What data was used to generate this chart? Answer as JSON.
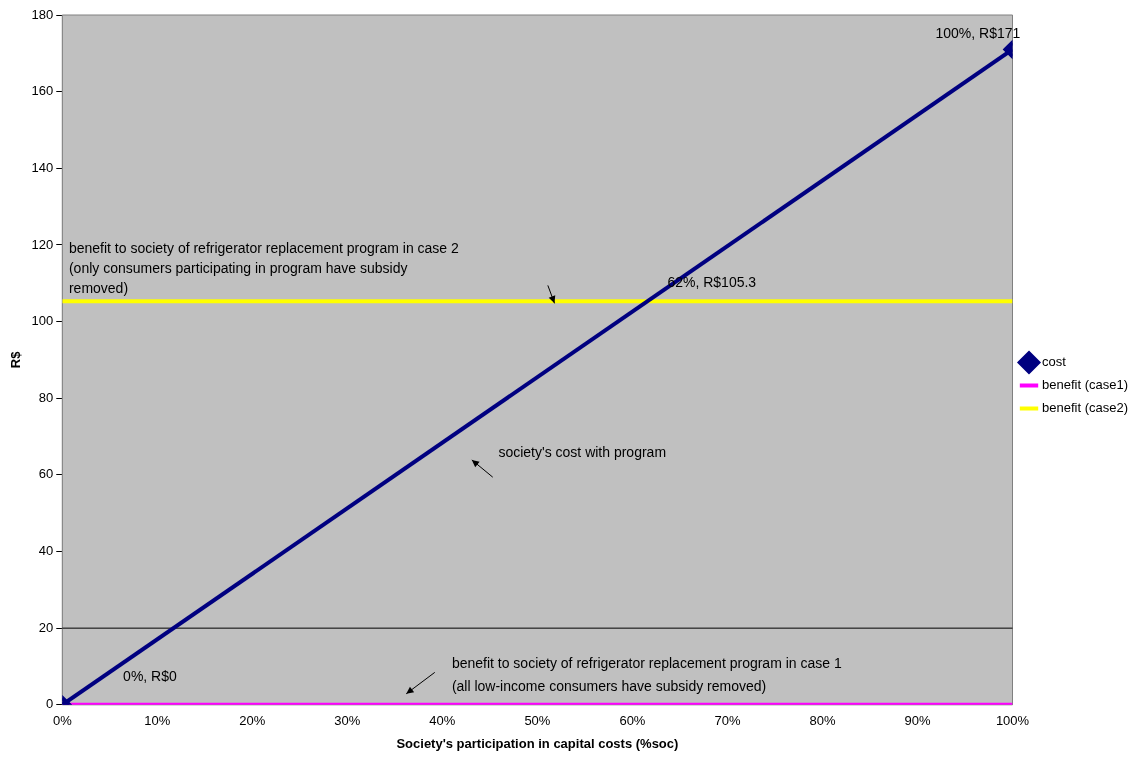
{
  "chart_data": {
    "type": "line",
    "xlabel": "Society's participation in capital costs (%soc)",
    "ylabel": "R$",
    "x": [
      0,
      100
    ],
    "series": [
      {
        "name": "cost",
        "color": "#000080",
        "values": [
          0,
          171
        ],
        "marker": "diamond"
      },
      {
        "name": "benefit (case1)",
        "color": "#ff00ff",
        "values": [
          0,
          0
        ],
        "marker": "none"
      },
      {
        "name": "benefit (case2)",
        "color": "#ffff00",
        "values": [
          105.3,
          105.3
        ],
        "marker": "none"
      }
    ],
    "xlim": [
      0,
      100
    ],
    "ylim": [
      0,
      180
    ],
    "xticks": [
      {
        "value": 0,
        "label": "0%"
      },
      {
        "value": 10,
        "label": "10%"
      },
      {
        "value": 20,
        "label": "20%"
      },
      {
        "value": 30,
        "label": "30%"
      },
      {
        "value": 40,
        "label": "40%"
      },
      {
        "value": 50,
        "label": "50%"
      },
      {
        "value": 60,
        "label": "60%"
      },
      {
        "value": 70,
        "label": "70%"
      },
      {
        "value": 80,
        "label": "80%"
      },
      {
        "value": 90,
        "label": "90%"
      },
      {
        "value": 100,
        "label": "100%"
      }
    ],
    "yticks": [
      0,
      20,
      40,
      60,
      80,
      100,
      120,
      140,
      160,
      180
    ],
    "ref_lines": [
      {
        "axis": "y",
        "value": 20,
        "color": "#000000"
      }
    ],
    "legend": "right",
    "grid": false,
    "line_style": "solid",
    "annotations": [
      {
        "text": "100%, R$171",
        "x": 100,
        "y": 171
      },
      "0%, R$0",
      {
        "text": "62%, R$105.3",
        "x": 62,
        "y": 105.3
      },
      "society's cost with program",
      "benefit to society of refrigerator replacement program in case 2\n(only consumers participating in program have subsidy\nremoved)",
      "benefit to society of refrigerator replacement program in case 1\n(all low-income consumers have subsidy removed)"
    ]
  }
}
